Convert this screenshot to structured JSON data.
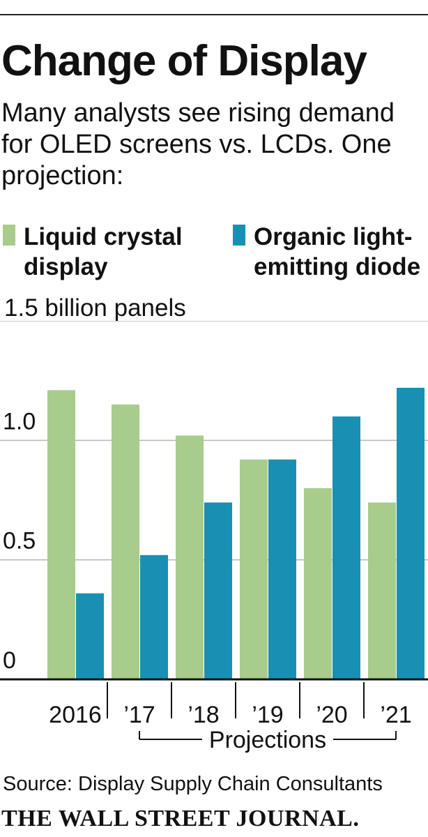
{
  "header": {
    "title": "Change of Display",
    "subtitle": "Many analysts see rising demand for OLED screens vs. LCDs. One projection:"
  },
  "legend": [
    {
      "label_line1": "Liquid crystal",
      "label_line2": "display",
      "color": "#a8cc8c"
    },
    {
      "label_line1": "Organic light-",
      "label_line2": "emitting diode",
      "color": "#1a8fb4"
    }
  ],
  "unit_label": "1.5 billion panels",
  "chart_data": {
    "type": "bar",
    "title": "Change of Display",
    "ylabel": "1.5 billion panels",
    "categories": [
      "2016",
      "’17",
      "’18",
      "’19",
      "’20",
      "’21"
    ],
    "series": [
      {
        "name": "Liquid crystal display",
        "values": [
          1.21,
          1.15,
          1.02,
          0.92,
          0.8,
          0.74
        ]
      },
      {
        "name": "Organic light-emitting diode",
        "values": [
          0.36,
          0.52,
          0.74,
          0.92,
          1.1,
          1.22
        ]
      }
    ],
    "ylim": [
      0,
      1.5
    ],
    "yticks": [
      0,
      0.5,
      1.0
    ],
    "ytick_labels": [
      "0",
      "0.5",
      "1.0"
    ],
    "grid": true,
    "annotation": {
      "label": "Projections",
      "from_category": 1,
      "to_category": 5
    }
  },
  "footer": {
    "source": "Source: Display Supply Chain Consultants",
    "masthead": "THE WALL STREET JOURNAL."
  },
  "colors": {
    "lcd": "#a8cc8c",
    "oled": "#1a8fb4",
    "grid": "#b5b5b5",
    "axis": "#111111"
  }
}
